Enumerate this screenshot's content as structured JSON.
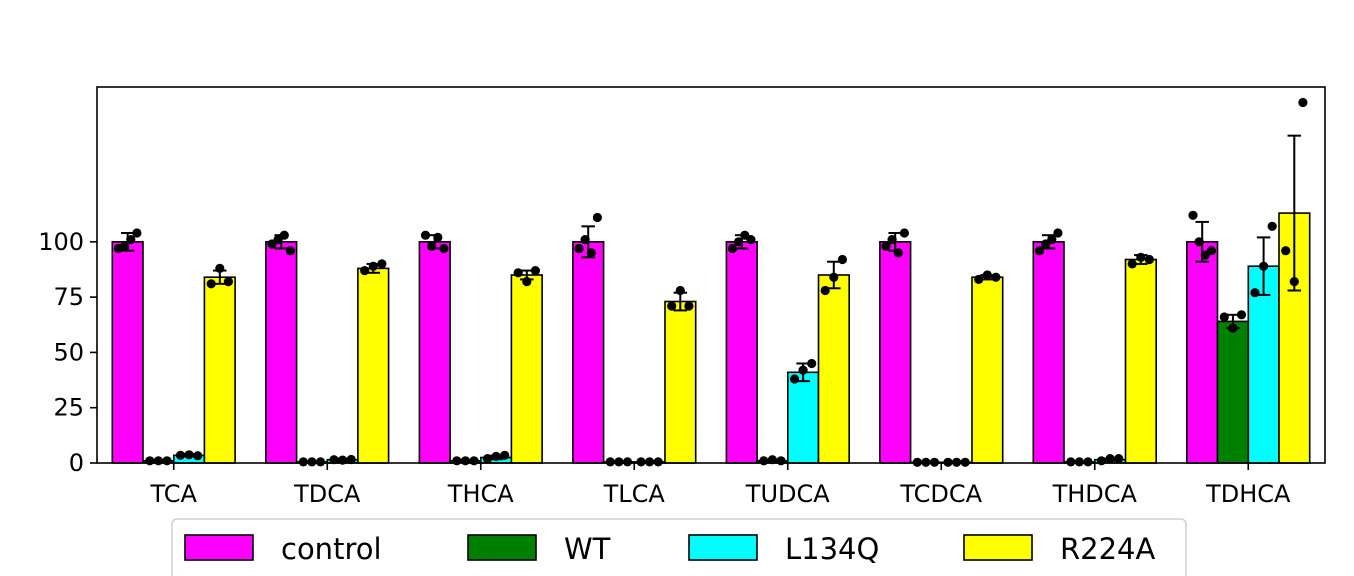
{
  "chart_data": {
    "type": "bar",
    "title": "",
    "xlabel": "",
    "ylabel": "",
    "ylim": [
      0,
      170
    ],
    "yticks": [
      0,
      25,
      50,
      75,
      100
    ],
    "grid": false,
    "legend_position": "bottom",
    "categories": [
      "TCA",
      "TDCA",
      "THCA",
      "TLCA",
      "TUDCA",
      "TCDCA",
      "THDCA",
      "TDHCA"
    ],
    "series": [
      {
        "name": "control",
        "color": "#ff00ff",
        "values": [
          100,
          100,
          100,
          100,
          100,
          100,
          100,
          100
        ],
        "errors": [
          4,
          3,
          3,
          7,
          3,
          4,
          3,
          9
        ],
        "points": [
          [
            97,
            98,
            101,
            104
          ],
          [
            99,
            101,
            103,
            96
          ],
          [
            103,
            98,
            102,
            97
          ],
          [
            97,
            101,
            95,
            111
          ],
          [
            97,
            100,
            103,
            101
          ],
          [
            98,
            101,
            95,
            104
          ],
          [
            96,
            99,
            101,
            104
          ],
          [
            112,
            100,
            94,
            96
          ]
        ]
      },
      {
        "name": "WT",
        "color": "#008000",
        "values": [
          1,
          0.5,
          1,
          0.5,
          1,
          0.3,
          0.5,
          64
        ],
        "errors": [
          0.3,
          0.2,
          0.3,
          0.2,
          0.3,
          0.1,
          0.2,
          3
        ],
        "points": [
          [
            1,
            1,
            1
          ],
          [
            0.5,
            0.5,
            0.5
          ],
          [
            1,
            1,
            1
          ],
          [
            0.5,
            0.5,
            0.5
          ],
          [
            1,
            1.5,
            1
          ],
          [
            0.3,
            0.3,
            0.3
          ],
          [
            0.5,
            0.5,
            0.5
          ],
          [
            66,
            61,
            67
          ]
        ]
      },
      {
        "name": "L134Q",
        "color": "#00ffff",
        "values": [
          3.5,
          1.5,
          2.5,
          0.5,
          41,
          0.3,
          1.5,
          89
        ],
        "errors": [
          0.5,
          0.5,
          0.8,
          0.2,
          4,
          0.1,
          0.5,
          13
        ],
        "points": [
          [
            3.5,
            3.7,
            3.3
          ],
          [
            1.5,
            1.3,
            1.6
          ],
          [
            2,
            3,
            3.5
          ],
          [
            0.5,
            0.5,
            0.5
          ],
          [
            38,
            42,
            45
          ],
          [
            0.3,
            0.3,
            0.3
          ],
          [
            1,
            2,
            2
          ],
          [
            77,
            89,
            107
          ]
        ]
      },
      {
        "name": "R224A",
        "color": "#ffff00",
        "values": [
          84,
          88,
          85,
          73,
          85,
          84,
          92,
          113
        ],
        "errors": [
          3,
          2,
          2,
          4,
          6,
          1,
          2,
          35
        ],
        "points": [
          [
            81,
            88,
            82
          ],
          [
            87,
            89,
            90
          ],
          [
            86,
            82,
            87
          ],
          [
            71,
            78,
            71
          ],
          [
            78,
            84,
            92
          ],
          [
            83,
            85,
            84
          ],
          [
            90,
            93,
            92
          ],
          [
            96,
            82,
            163
          ]
        ]
      }
    ]
  }
}
